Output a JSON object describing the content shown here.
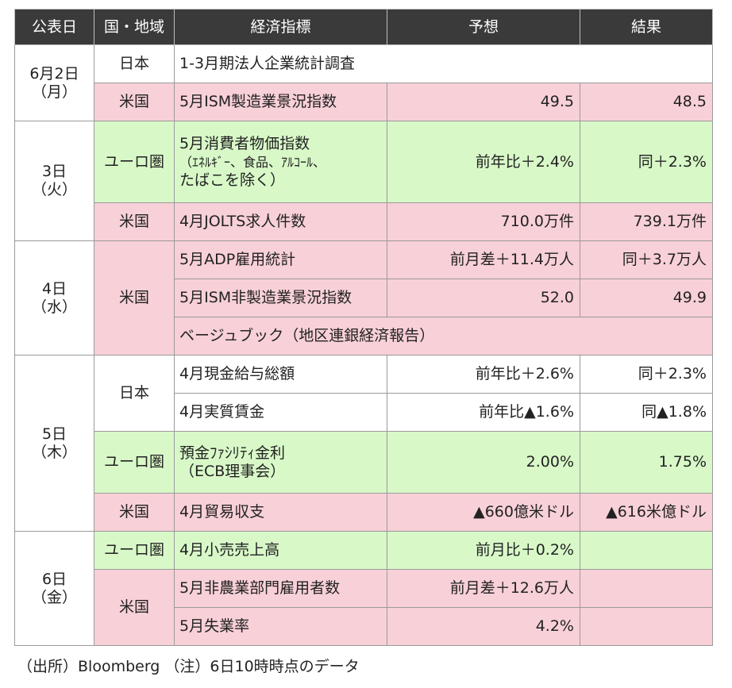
{
  "headers": [
    "公表日",
    "国・地域",
    "経済指標",
    "予想",
    "結果"
  ],
  "days": [
    {
      "date": "6月2日",
      "weekday": "（月）"
    },
    {
      "date": "3日",
      "weekday": "（火）"
    },
    {
      "date": "4日",
      "weekday": "（水）"
    },
    {
      "date": "5日",
      "weekday": "（木）"
    },
    {
      "date": "6日",
      "weekday": "（金）"
    }
  ],
  "rows": [
    {
      "region": "日本",
      "indicator": "1-3月期法人企業統計調査",
      "forecast": "",
      "result": ""
    },
    {
      "region": "米国",
      "indicator": "5月ISM製造業景況指数",
      "forecast": "49.5",
      "result": "48.5"
    },
    {
      "region": "ユーロ圏",
      "indicator_lines": [
        "5月消費者物価指数",
        "（ｴﾈﾙｷﾞｰ、食品、ｱﾙｺｰﾙ、",
        "たばこを除く）"
      ],
      "forecast": "前年比＋2.4%",
      "result": "同＋2.3%"
    },
    {
      "region": "米国",
      "indicator": "4月JOLTS求人件数",
      "forecast": "710.0万件",
      "result": "739.1万件"
    },
    {
      "region": "米国",
      "indicator": "5月ADP雇用統計",
      "forecast": "前月差＋11.4万人",
      "result": "同＋3.7万人"
    },
    {
      "indicator": "5月ISM非製造業景況指数",
      "forecast": "52.0",
      "result": "49.9"
    },
    {
      "indicator": "ベージュブック（地区連銀経済報告）"
    },
    {
      "region": "日本",
      "indicator": "4月現金給与総額",
      "forecast": "前年比＋2.6%",
      "result": "同＋2.3%"
    },
    {
      "indicator": "4月実質賃金",
      "forecast": "前年比▲1.6%",
      "result": "同▲1.8%"
    },
    {
      "region": "ユーロ圏",
      "indicator_lines": [
        "預金ﾌｧｼﾘﾃｨ金利",
        "（ECB理事会）"
      ],
      "forecast": "2.00%",
      "result": "1.75%"
    },
    {
      "region": "米国",
      "indicator": "4月貿易収支",
      "forecast": "▲660億米ドル",
      "result": "▲616米億ドル"
    },
    {
      "region": "ユーロ圏",
      "indicator": "4月小売売上高",
      "forecast": "前月比＋0.2%",
      "result": ""
    },
    {
      "region": "米国",
      "indicator": "5月非農業部門雇用者数",
      "forecast": "前月差＋12.6万人",
      "result": ""
    },
    {
      "indicator": "5月失業率",
      "forecast": "4.2%",
      "result": ""
    }
  ],
  "footnote": "（出所）Bloomberg （注）6日10時時点のデータ",
  "colors": {
    "header": "#3a3a3a",
    "us_row": "#f8d0d8",
    "euro_row": "#d8f8c8",
    "japan_row": "#ffffff"
  }
}
